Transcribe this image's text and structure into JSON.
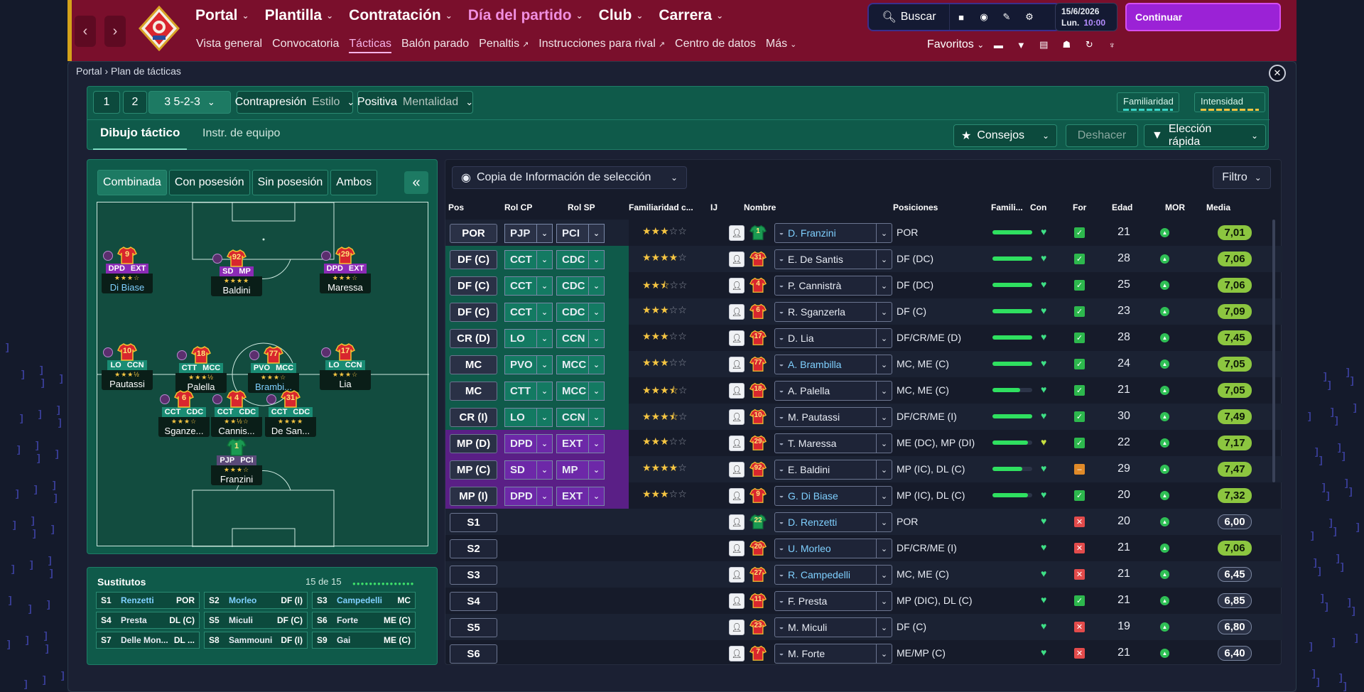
{
  "nav": {
    "back_icon": "chevron-left-icon",
    "forward_icon": "chevron-right-icon",
    "menu": [
      {
        "label": "Portal"
      },
      {
        "label": "Plantilla"
      },
      {
        "label": "Contratación"
      },
      {
        "label": "Día del partido"
      },
      {
        "label": "Club"
      },
      {
        "label": "Carrera"
      }
    ],
    "submenu": [
      {
        "label": "Vista general"
      },
      {
        "label": "Convocatoria"
      },
      {
        "label": "Tácticas"
      },
      {
        "label": "Balón parado"
      },
      {
        "label": "Penaltis"
      },
      {
        "label": "Instrucciones para rival"
      },
      {
        "label": "Centro de datos"
      },
      {
        "label": "Más"
      }
    ],
    "search_label": "Buscar",
    "date": "15/6/2026",
    "day": "Lun.",
    "time": "10:00",
    "continue_label": "Continuar",
    "favorites_label": "Favoritos"
  },
  "breadcrumb": {
    "root": "Portal",
    "current": "Plan de tácticas"
  },
  "tactics": {
    "slot1": "1",
    "slot2": "2",
    "slot3_num": "3",
    "formation": "5-2-3",
    "style_value": "Contrapresión",
    "style_label": "Estilo",
    "mentality_value": "Positiva",
    "mentality_label": "Mentalidad",
    "familiarity_label": "Familiaridad",
    "intensity_label": "Intensidad",
    "tab_drawing": "Dibujo táctico",
    "tab_team_instr": "Instr. de equipo",
    "tips_label": "Consejos",
    "undo_label": "Deshacer",
    "quick_pick_label": "Elección rápida"
  },
  "pitch_view": {
    "tabs": [
      "Combinada",
      "Con posesión",
      "Sin posesión",
      "Ambos"
    ],
    "collapse": "«"
  },
  "pitch_players": [
    {
      "num": "9",
      "r1": "DPD",
      "r2": "EXT",
      "stars": "★★★☆",
      "name": "Di Biase",
      "hl": true,
      "kind": "att"
    },
    {
      "num": "92",
      "r1": "SD",
      "r2": "MP",
      "stars": "★★★★",
      "name": "Baldini",
      "hl": false,
      "kind": "att"
    },
    {
      "num": "29",
      "r1": "DPD",
      "r2": "EXT",
      "stars": "★★★☆",
      "name": "Maressa",
      "hl": false,
      "kind": "att"
    },
    {
      "num": "10",
      "r1": "LO",
      "r2": "CCN",
      "stars": "★★★½",
      "name": "Pautassi",
      "hl": false,
      "kind": "mid"
    },
    {
      "num": "18",
      "r1": "CTT",
      "r2": "MCC",
      "stars": "★★★½",
      "name": "Palella",
      "hl": false,
      "kind": "mid"
    },
    {
      "num": "77",
      "r1": "PVO",
      "r2": "MCC",
      "stars": "★★★☆",
      "name": "Brambi...",
      "hl": true,
      "kind": "mid"
    },
    {
      "num": "17",
      "r1": "LO",
      "r2": "CCN",
      "stars": "★★★☆",
      "name": "Lia",
      "hl": false,
      "kind": "mid"
    },
    {
      "num": "6",
      "r1": "CCT",
      "r2": "CDC",
      "stars": "★★★☆",
      "name": "Sganze...",
      "hl": false,
      "kind": "def"
    },
    {
      "num": "4",
      "r1": "CCT",
      "r2": "CDC",
      "stars": "★★½☆",
      "name": "Cannis...",
      "hl": false,
      "kind": "def"
    },
    {
      "num": "31",
      "r1": "CCT",
      "r2": "CDC",
      "stars": "★★★★",
      "name": "De San...",
      "hl": false,
      "kind": "def"
    },
    {
      "num": "1",
      "r1": "PJP",
      "r2": "PCI",
      "stars": "★★★☆",
      "name": "Franzini",
      "hl": false,
      "kind": "gk"
    }
  ],
  "subs": {
    "title": "Sustitutos",
    "count": "15 de 15",
    "items": [
      {
        "slot": "S1",
        "name": "Renzetti",
        "pos": "POR",
        "hl": true
      },
      {
        "slot": "S2",
        "name": "Morleo",
        "pos": "DF (I)",
        "hl": true
      },
      {
        "slot": "S3",
        "name": "Campedelli",
        "pos": "MC",
        "hl": true
      },
      {
        "slot": "S4",
        "name": "Presta",
        "pos": "DL (C)",
        "hl": false
      },
      {
        "slot": "S5",
        "name": "Miculi",
        "pos": "DF (C)",
        "hl": false
      },
      {
        "slot": "S6",
        "name": "Forte",
        "pos": "ME (C)",
        "hl": false
      },
      {
        "slot": "S7",
        "name": "Delle Mon...",
        "pos": "DL ...",
        "hl": false
      },
      {
        "slot": "S8",
        "name": "Sammouni",
        "pos": "DF (I)",
        "hl": false
      },
      {
        "slot": "S9",
        "name": "Gai",
        "pos": "ME (C)",
        "hl": false
      }
    ]
  },
  "table": {
    "copy_label": "Copia de Información de selección",
    "filter_label": "Filtro",
    "headers": {
      "pos": "Pos",
      "rolcp": "Rol CP",
      "rolsp": "Rol SP",
      "famc": "Familiaridad c...",
      "ij": "IJ",
      "name": "Nombre",
      "positions": "Posiciones",
      "fam": "Famili...",
      "con": "Con",
      "for": "For",
      "age": "Edad",
      "mor": "MOR",
      "avg": "Media"
    },
    "rows": [
      {
        "pos": "POR",
        "cp": "PJP",
        "sp": "PCI",
        "stars": "★★★",
        "half": false,
        "empty": "☆☆",
        "num": "1",
        "gk": true,
        "name": "D. Franzini",
        "hl": true,
        "positions": "POR",
        "fam": 1.0,
        "heart": "g",
        "fit": "ok",
        "age": "21",
        "avg": "7,01",
        "zone": "gk"
      },
      {
        "pos": "DF (C)",
        "cp": "CCT",
        "sp": "CDC",
        "stars": "★★★★",
        "half": false,
        "empty": "☆",
        "num": "31",
        "name": "E. De Santis",
        "hl": false,
        "positions": "DF (DC)",
        "fam": 1.0,
        "heart": "g",
        "fit": "ok",
        "age": "28",
        "avg": "7,06",
        "zone": "def"
      },
      {
        "pos": "DF (C)",
        "cp": "CCT",
        "sp": "CDC",
        "stars": "★★",
        "half": true,
        "empty": "☆☆",
        "num": "4",
        "name": "P. Cannistrà",
        "hl": false,
        "positions": "DF (DC)",
        "fam": 1.0,
        "heart": "g",
        "fit": "ok",
        "age": "25",
        "avg": "7,06",
        "zone": "def"
      },
      {
        "pos": "DF (C)",
        "cp": "CCT",
        "sp": "CDC",
        "stars": "★★★",
        "half": false,
        "empty": "☆☆",
        "num": "6",
        "name": "R. Sganzerla",
        "hl": false,
        "positions": "DF (C)",
        "fam": 1.0,
        "heart": "g",
        "fit": "ok",
        "age": "23",
        "avg": "7,09",
        "zone": "def"
      },
      {
        "pos": "CR (D)",
        "cp": "LO",
        "sp": "CCN",
        "stars": "★★★",
        "half": false,
        "empty": "☆☆",
        "num": "17",
        "name": "D. Lia",
        "hl": false,
        "positions": "DF/CR/ME (D)",
        "fam": 1.0,
        "heart": "g",
        "fit": "ok",
        "age": "28",
        "avg": "7,45",
        "zone": "mid"
      },
      {
        "pos": "MC",
        "cp": "PVO",
        "sp": "MCC",
        "stars": "★★★",
        "half": false,
        "empty": "☆☆",
        "num": "77",
        "name": "A. Brambilla",
        "hl": true,
        "positions": "MC, ME (C)",
        "fam": 1.0,
        "heart": "g",
        "fit": "ok",
        "age": "24",
        "avg": "7,05",
        "zone": "mid"
      },
      {
        "pos": "MC",
        "cp": "CTT",
        "sp": "MCC",
        "stars": "★★★",
        "half": true,
        "empty": "☆",
        "num": "18",
        "name": "A. Palella",
        "hl": false,
        "positions": "MC, ME (C)",
        "fam": 0.7,
        "heart": "g",
        "fit": "ok",
        "age": "21",
        "avg": "7,05",
        "zone": "mid"
      },
      {
        "pos": "CR (I)",
        "cp": "LO",
        "sp": "CCN",
        "stars": "★★★",
        "half": true,
        "empty": "☆",
        "num": "10",
        "name": "M. Pautassi",
        "hl": false,
        "positions": "DF/CR/ME (I)",
        "fam": 1.0,
        "heart": "g",
        "fit": "ok",
        "age": "30",
        "avg": "7,49",
        "zone": "mid"
      },
      {
        "pos": "MP (D)",
        "cp": "DPD",
        "sp": "EXT",
        "stars": "★★★",
        "half": false,
        "empty": "☆☆",
        "num": "29",
        "name": "T. Maressa",
        "hl": false,
        "positions": "ME (DC), MP (DI)",
        "fam": 0.9,
        "heart": "y",
        "fit": "ok",
        "age": "22",
        "avg": "7,17",
        "zone": "att"
      },
      {
        "pos": "MP (C)",
        "cp": "SD",
        "sp": "MP",
        "stars": "★★★★",
        "half": false,
        "empty": "☆",
        "num": "92",
        "name": "E. Baldini",
        "hl": false,
        "positions": "MP (IC), DL (C)",
        "fam": 0.75,
        "heart": "g",
        "fit": "w",
        "age": "29",
        "avg": "7,47",
        "zone": "att"
      },
      {
        "pos": "MP (I)",
        "cp": "DPD",
        "sp": "EXT",
        "stars": "★★★",
        "half": false,
        "empty": "☆☆",
        "num": "9",
        "name": "G. Di Biase",
        "hl": true,
        "positions": "MP (IC), DL (C)",
        "fam": 0.9,
        "heart": "g",
        "fit": "ok",
        "age": "20",
        "avg": "7,32",
        "zone": "att"
      },
      {
        "pos": "S1",
        "num": "22",
        "gk": true,
        "name": "D. Renzetti",
        "hl": true,
        "positions": "POR",
        "heart": "g",
        "fit": "x",
        "age": "20",
        "avg": "6,00",
        "zone": "sub"
      },
      {
        "pos": "S2",
        "num": "20",
        "name": "U. Morleo",
        "hl": true,
        "positions": "DF/CR/ME (I)",
        "heart": "g",
        "fit": "x",
        "age": "21",
        "avg": "7,06",
        "zone": "sub"
      },
      {
        "pos": "S3",
        "num": "27",
        "name": "R. Campedelli",
        "hl": true,
        "positions": "MC, ME (C)",
        "heart": "g",
        "fit": "x",
        "age": "21",
        "avg": "6,45",
        "zone": "sub"
      },
      {
        "pos": "S4",
        "num": "11",
        "name": "F. Presta",
        "hl": false,
        "positions": "MP (DIC), DL (C)",
        "heart": "g",
        "fit": "ok",
        "age": "21",
        "avg": "6,85",
        "zone": "sub"
      },
      {
        "pos": "S5",
        "num": "23",
        "name": "M. Miculi",
        "hl": false,
        "positions": "DF (C)",
        "heart": "g",
        "fit": "x",
        "age": "19",
        "avg": "6,80",
        "zone": "sub"
      },
      {
        "pos": "S6",
        "num": "7",
        "name": "M. Forte",
        "hl": false,
        "positions": "ME/MP (C)",
        "heart": "g",
        "fit": "x",
        "age": "21",
        "avg": "6,40",
        "zone": "sub"
      }
    ]
  },
  "colors": {
    "accent": "#9b22d6",
    "pitch": "#124c3f",
    "panel": "#0f5a4a",
    "topbar": "#7a0f2c"
  }
}
